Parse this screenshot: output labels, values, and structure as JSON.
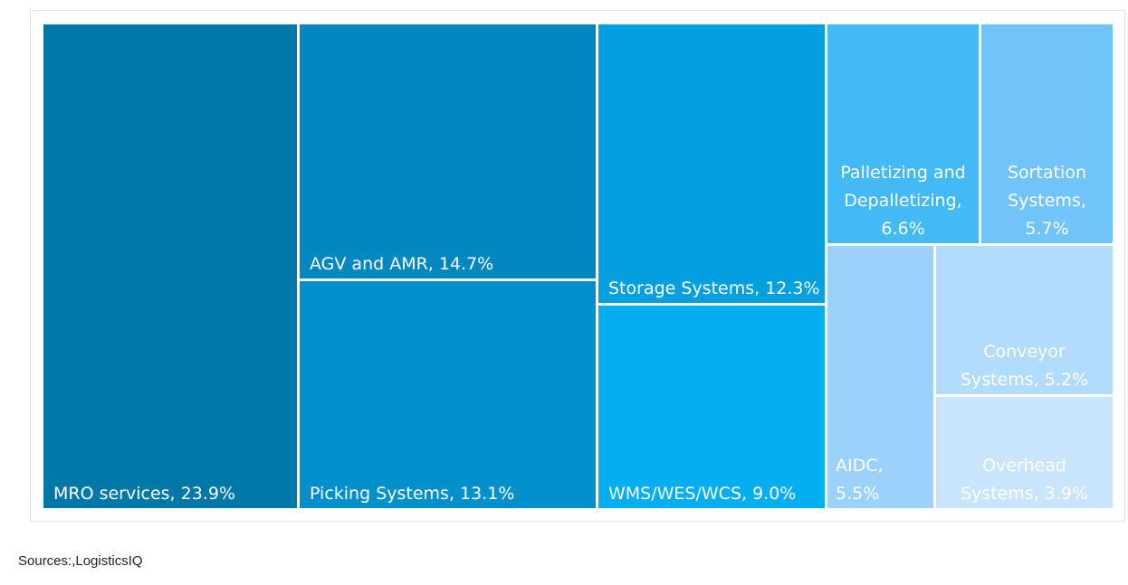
{
  "chart_data": {
    "type": "treemap",
    "title": "",
    "items": [
      {
        "label": "MRO services, 23.9%",
        "value": 23.9,
        "color": "#0278a8",
        "text_color": "#ffffff"
      },
      {
        "label": "AGV and AMR, 14.7%",
        "value": 14.7,
        "color": "#0287c1",
        "text_color": "#ffffff"
      },
      {
        "label": "Picking Systems, 13.1%",
        "value": 13.1,
        "color": "#0290cc",
        "text_color": "#ffffff"
      },
      {
        "label": "Storage Systems, 12.3%",
        "value": 12.3,
        "color": "#039fde",
        "text_color": "#ffffff"
      },
      {
        "label": "WMS/WES/WCS, 9.0%",
        "value": 9.0,
        "color": "#04aef0",
        "text_color": "#ffffff"
      },
      {
        "label": "Palletizing and Depalletizing, 6.6%",
        "value": 6.6,
        "color": "#43b9f6",
        "text_color": "#ffffff",
        "lines": [
          "Palletizing and",
          "Depalletizing,",
          "6.6%"
        ]
      },
      {
        "label": "Sortation Systems, 5.7%",
        "value": 5.7,
        "color": "#71c4fa",
        "text_color": "#ffffff",
        "lines": [
          "Sortation",
          "Systems,",
          "5.7%"
        ]
      },
      {
        "label": "AIDC, 5.5%",
        "value": 5.5,
        "color": "#9bd1fb",
        "text_color": "#ffffff",
        "lines": [
          "AIDC,",
          "5.5%"
        ]
      },
      {
        "label": "Conveyor Systems, 5.2%",
        "value": 5.2,
        "color": "#b2dcfd",
        "text_color": "#ffffff",
        "lines": [
          "Conveyor",
          "Systems, 5.2%"
        ]
      },
      {
        "label": "Overhead Systems, 3.9%",
        "value": 3.9,
        "color": "#c8e5fd",
        "text_color": "#ffffff",
        "lines": [
          "Overhead",
          "Systems, 3.9%"
        ]
      }
    ]
  },
  "footer": {
    "sources": "Sources:,LogisticsIQ"
  }
}
